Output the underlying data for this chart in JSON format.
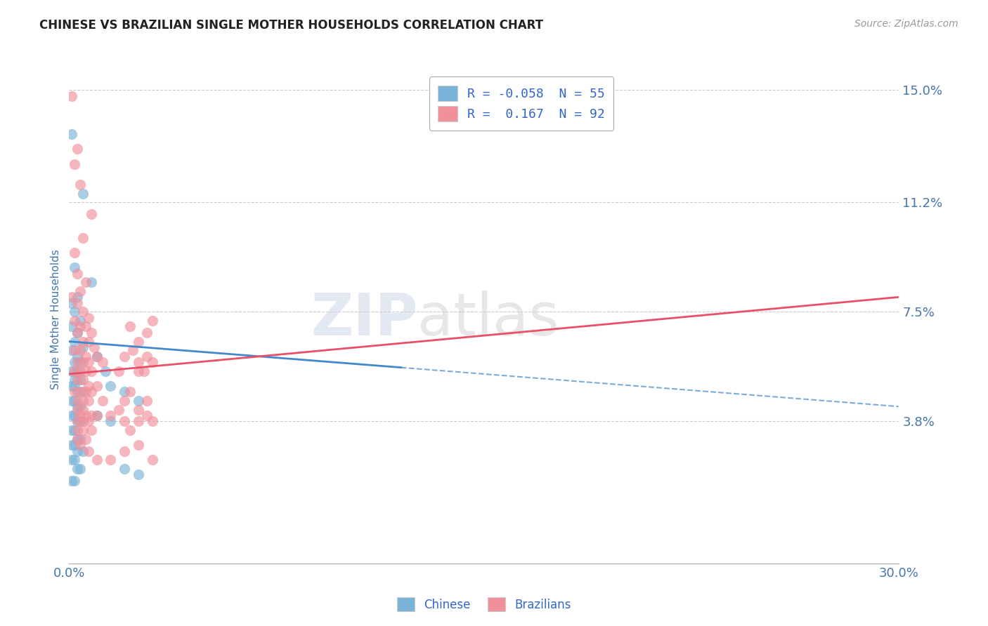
{
  "title": "CHINESE VS BRAZILIAN SINGLE MOTHER HOUSEHOLDS CORRELATION CHART",
  "source": "Source: ZipAtlas.com",
  "ylabel": "Single Mother Households",
  "xmin": 0.0,
  "xmax": 0.3,
  "ymin": -0.01,
  "ymax": 0.155,
  "yticks": [
    0.038,
    0.075,
    0.112,
    0.15
  ],
  "ytick_labels": [
    "3.8%",
    "7.5%",
    "11.2%",
    "15.0%"
  ],
  "xticks": [
    0.0,
    0.3
  ],
  "xtick_labels": [
    "0.0%",
    "30.0%"
  ],
  "watermark_text": "ZIP",
  "watermark_text2": "atlas",
  "chinese_color": "#7ab3d8",
  "brazilian_color": "#f0909a",
  "chinese_line_color": "#4488cc",
  "brazilian_line_color": "#e8506a",
  "grid_color": "#cccccc",
  "background_color": "#ffffff",
  "tick_color": "#4477aa",
  "chinese_trendline": [
    0.0,
    0.065,
    0.3,
    0.043
  ],
  "brazilian_trendline": [
    0.0,
    0.054,
    0.3,
    0.08
  ],
  "chinese_scatter": [
    [
      0.001,
      0.135
    ],
    [
      0.005,
      0.115
    ],
    [
      0.002,
      0.09
    ],
    [
      0.008,
      0.085
    ],
    [
      0.003,
      0.08
    ],
    [
      0.001,
      0.078
    ],
    [
      0.002,
      0.075
    ],
    [
      0.004,
      0.072
    ],
    [
      0.001,
      0.07
    ],
    [
      0.003,
      0.068
    ],
    [
      0.002,
      0.065
    ],
    [
      0.005,
      0.063
    ],
    [
      0.001,
      0.062
    ],
    [
      0.003,
      0.06
    ],
    [
      0.002,
      0.058
    ],
    [
      0.004,
      0.058
    ],
    [
      0.001,
      0.055
    ],
    [
      0.003,
      0.055
    ],
    [
      0.002,
      0.052
    ],
    [
      0.004,
      0.052
    ],
    [
      0.001,
      0.05
    ],
    [
      0.002,
      0.05
    ],
    [
      0.003,
      0.048
    ],
    [
      0.005,
      0.048
    ],
    [
      0.001,
      0.045
    ],
    [
      0.002,
      0.045
    ],
    [
      0.003,
      0.043
    ],
    [
      0.004,
      0.043
    ],
    [
      0.001,
      0.04
    ],
    [
      0.002,
      0.04
    ],
    [
      0.003,
      0.038
    ],
    [
      0.004,
      0.038
    ],
    [
      0.001,
      0.035
    ],
    [
      0.002,
      0.035
    ],
    [
      0.003,
      0.032
    ],
    [
      0.004,
      0.032
    ],
    [
      0.001,
      0.03
    ],
    [
      0.002,
      0.03
    ],
    [
      0.003,
      0.028
    ],
    [
      0.005,
      0.028
    ],
    [
      0.001,
      0.025
    ],
    [
      0.002,
      0.025
    ],
    [
      0.003,
      0.022
    ],
    [
      0.004,
      0.022
    ],
    [
      0.001,
      0.018
    ],
    [
      0.002,
      0.018
    ],
    [
      0.01,
      0.06
    ],
    [
      0.013,
      0.055
    ],
    [
      0.015,
      0.05
    ],
    [
      0.02,
      0.048
    ],
    [
      0.025,
      0.045
    ],
    [
      0.01,
      0.04
    ],
    [
      0.015,
      0.038
    ],
    [
      0.02,
      0.022
    ],
    [
      0.025,
      0.02
    ]
  ],
  "brazilian_scatter": [
    [
      0.001,
      0.148
    ],
    [
      0.003,
      0.13
    ],
    [
      0.002,
      0.125
    ],
    [
      0.004,
      0.118
    ],
    [
      0.008,
      0.108
    ],
    [
      0.005,
      0.1
    ],
    [
      0.002,
      0.095
    ],
    [
      0.003,
      0.088
    ],
    [
      0.006,
      0.085
    ],
    [
      0.004,
      0.082
    ],
    [
      0.001,
      0.08
    ],
    [
      0.003,
      0.078
    ],
    [
      0.005,
      0.075
    ],
    [
      0.007,
      0.073
    ],
    [
      0.002,
      0.072
    ],
    [
      0.004,
      0.07
    ],
    [
      0.006,
      0.07
    ],
    [
      0.008,
      0.068
    ],
    [
      0.003,
      0.068
    ],
    [
      0.005,
      0.065
    ],
    [
      0.007,
      0.065
    ],
    [
      0.009,
      0.063
    ],
    [
      0.002,
      0.062
    ],
    [
      0.004,
      0.062
    ],
    [
      0.006,
      0.06
    ],
    [
      0.01,
      0.06
    ],
    [
      0.003,
      0.058
    ],
    [
      0.005,
      0.058
    ],
    [
      0.007,
      0.058
    ],
    [
      0.012,
      0.058
    ],
    [
      0.002,
      0.055
    ],
    [
      0.004,
      0.055
    ],
    [
      0.006,
      0.055
    ],
    [
      0.008,
      0.055
    ],
    [
      0.003,
      0.052
    ],
    [
      0.005,
      0.052
    ],
    [
      0.007,
      0.05
    ],
    [
      0.01,
      0.05
    ],
    [
      0.002,
      0.048
    ],
    [
      0.004,
      0.048
    ],
    [
      0.006,
      0.048
    ],
    [
      0.008,
      0.048
    ],
    [
      0.003,
      0.045
    ],
    [
      0.005,
      0.045
    ],
    [
      0.007,
      0.045
    ],
    [
      0.012,
      0.045
    ],
    [
      0.003,
      0.042
    ],
    [
      0.005,
      0.042
    ],
    [
      0.004,
      0.04
    ],
    [
      0.006,
      0.04
    ],
    [
      0.008,
      0.04
    ],
    [
      0.01,
      0.04
    ],
    [
      0.003,
      0.038
    ],
    [
      0.005,
      0.038
    ],
    [
      0.007,
      0.038
    ],
    [
      0.003,
      0.035
    ],
    [
      0.005,
      0.035
    ],
    [
      0.008,
      0.035
    ],
    [
      0.003,
      0.032
    ],
    [
      0.006,
      0.032
    ],
    [
      0.004,
      0.03
    ],
    [
      0.007,
      0.028
    ],
    [
      0.01,
      0.025
    ],
    [
      0.015,
      0.025
    ],
    [
      0.02,
      0.028
    ],
    [
      0.025,
      0.03
    ],
    [
      0.018,
      0.055
    ],
    [
      0.022,
      0.048
    ],
    [
      0.025,
      0.058
    ],
    [
      0.028,
      0.04
    ],
    [
      0.02,
      0.038
    ],
    [
      0.03,
      0.025
    ],
    [
      0.015,
      0.04
    ],
    [
      0.02,
      0.06
    ],
    [
      0.025,
      0.065
    ],
    [
      0.022,
      0.07
    ],
    [
      0.028,
      0.06
    ],
    [
      0.03,
      0.072
    ],
    [
      0.02,
      0.045
    ],
    [
      0.025,
      0.055
    ],
    [
      0.018,
      0.042
    ],
    [
      0.022,
      0.035
    ],
    [
      0.025,
      0.042
    ],
    [
      0.028,
      0.045
    ],
    [
      0.03,
      0.038
    ],
    [
      0.027,
      0.055
    ],
    [
      0.023,
      0.062
    ],
    [
      0.028,
      0.068
    ],
    [
      0.03,
      0.058
    ],
    [
      0.025,
      0.038
    ]
  ]
}
